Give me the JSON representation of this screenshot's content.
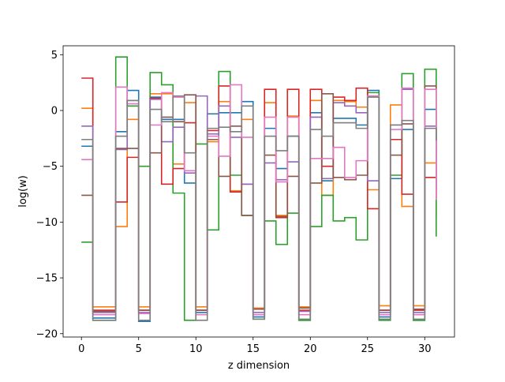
{
  "chart_data": {
    "type": "line",
    "step": "post",
    "title": "",
    "xlabel": "z dimension",
    "ylabel": "log(w)",
    "xlim": [
      -1.6,
      32.6
    ],
    "ylim": [
      -20.3,
      5.8
    ],
    "xticks": [
      0,
      5,
      10,
      15,
      20,
      25,
      30
    ],
    "xtick_labels": [
      "0",
      "5",
      "10",
      "15",
      "20",
      "25",
      "30"
    ],
    "yticks": [
      5,
      0,
      -5,
      -10,
      -15,
      -20
    ],
    "ytick_labels": [
      "5",
      "0",
      "−5",
      "−10",
      "−15",
      "−20"
    ],
    "grid": false,
    "legend": "none",
    "x": [
      0,
      1,
      2,
      3,
      4,
      5,
      6,
      7,
      8,
      9,
      10,
      11,
      12,
      13,
      14,
      15,
      16,
      17,
      18,
      19,
      20,
      21,
      22,
      23,
      24,
      25,
      26,
      27,
      28,
      29,
      30,
      31
    ],
    "series": [
      {
        "color": "#1f77b4",
        "values": [
          -3.2,
          -18.6,
          -18.6,
          -1.9,
          1.8,
          -18.9,
          1.2,
          -0.8,
          -0.8,
          -6.5,
          -18.1,
          -0.3,
          -0.2,
          -0.2,
          0.8,
          -18.5,
          -1.6,
          -5.2,
          -2.3,
          -18.8,
          -0.2,
          -6.3,
          -0.7,
          -0.7,
          -1.3,
          1.8,
          -18.5,
          -6.1,
          -1.7,
          -18.8,
          0.1,
          -6.3
        ]
      },
      {
        "color": "#ff7f0e",
        "values": [
          0.2,
          -17.6,
          -17.6,
          -10.4,
          -0.8,
          -17.6,
          1.5,
          1.5,
          -4.8,
          0.7,
          -17.6,
          -2.8,
          0.8,
          -7.2,
          -0.8,
          -17.7,
          0.7,
          -9.4,
          -0.5,
          -17.6,
          0.9,
          -7.6,
          0.9,
          0.8,
          0.3,
          -7.1,
          -17.5,
          0.5,
          -8.6,
          -17.5,
          -4.7,
          -9.6
        ]
      },
      {
        "color": "#2ca02c",
        "values": [
          -11.8,
          -18.8,
          -18.8,
          4.8,
          0.4,
          -5.0,
          3.4,
          2.3,
          -7.4,
          -18.8,
          -3.0,
          -10.7,
          3.5,
          -5.8,
          -9.4,
          -18.7,
          -9.9,
          -12.0,
          -9.2,
          -18.8,
          -10.4,
          -7.6,
          -9.9,
          -9.6,
          -11.6,
          1.6,
          -18.8,
          -5.8,
          3.3,
          -18.8,
          3.7,
          -11.3
        ]
      },
      {
        "color": "#d62728",
        "values": [
          2.9,
          -17.9,
          -17.9,
          -8.2,
          -4.2,
          -17.9,
          1.1,
          -6.6,
          -5.2,
          -1.1,
          -17.9,
          -1.8,
          2.2,
          -7.3,
          -6.6,
          -17.8,
          1.9,
          -9.6,
          1.9,
          -17.9,
          1.9,
          -5.0,
          1.2,
          0.9,
          2.0,
          -8.8,
          -17.9,
          -2.6,
          -7.5,
          -17.9,
          -6.0,
          -7.9
        ]
      },
      {
        "color": "#9467bd",
        "values": [
          -1.4,
          -18.1,
          -18.1,
          -3.5,
          0.9,
          -18.1,
          1.0,
          -2.8,
          -1.5,
          -5.6,
          1.3,
          -2.1,
          0.4,
          -2.4,
          -6.6,
          -18.1,
          -4.7,
          -6.2,
          -4.6,
          -18.0,
          -0.6,
          -6.1,
          0.7,
          0.4,
          -0.2,
          -6.3,
          -18.1,
          -1.3,
          1.9,
          -18.1,
          -1.4,
          -7.8
        ]
      },
      {
        "color": "#8c564b",
        "values": [
          -7.6,
          -18.0,
          -18.0,
          -3.4,
          -3.4,
          -17.9,
          -3.8,
          -0.6,
          -1.0,
          1.4,
          -17.9,
          -2.6,
          -5.9,
          -1.4,
          -9.4,
          -17.8,
          -4.0,
          -9.5,
          -5.9,
          -17.7,
          -6.5,
          1.5,
          -6.0,
          -6.2,
          -5.8,
          1.3,
          -17.9,
          -4.0,
          -1.2,
          -17.8,
          2.2,
          -7.1
        ]
      },
      {
        "color": "#e377c2",
        "values": [
          -4.4,
          -18.3,
          -18.3,
          2.1,
          0.6,
          -18.2,
          -1.3,
          1.6,
          1.2,
          -5.4,
          -18.3,
          -2.3,
          -4.1,
          2.3,
          -2.4,
          -18.3,
          -0.6,
          -6.4,
          -0.6,
          -18.3,
          -4.3,
          -4.3,
          -3.3,
          -6.0,
          -4.5,
          1.3,
          -18.3,
          -1.7,
          2.0,
          -18.3,
          1.9,
          -8.0
        ]
      },
      {
        "color": "#7f7f7f",
        "values": [
          -2.6,
          -18.8,
          -18.8,
          -2.3,
          0.9,
          -18.8,
          0.1,
          -1.0,
          1.3,
          -3.8,
          -18.8,
          -1.6,
          -1.5,
          -1.9,
          0.4,
          -18.7,
          -2.3,
          -3.6,
          -2.3,
          -18.7,
          -1.7,
          -2.3,
          -1.1,
          -1.1,
          -1.6,
          1.2,
          -18.7,
          -1.3,
          -0.9,
          -18.7,
          -1.6,
          -2.7
        ]
      }
    ]
  }
}
